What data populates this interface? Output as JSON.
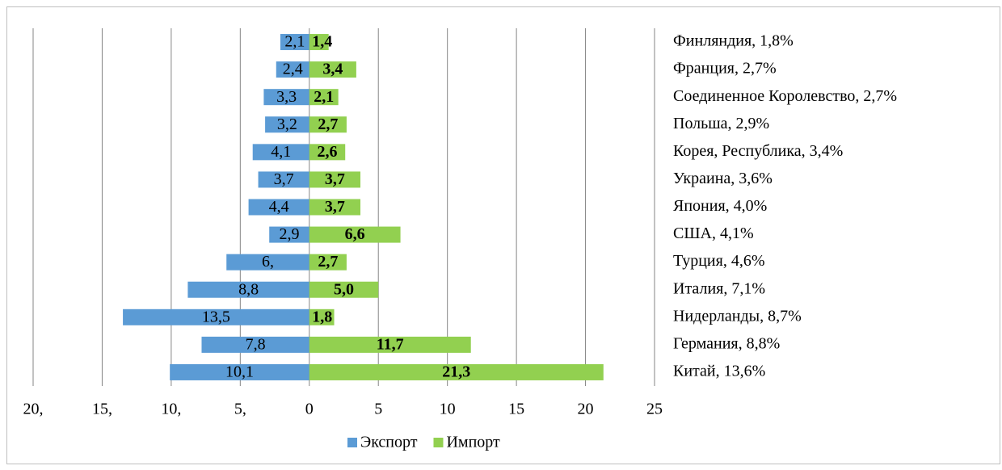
{
  "chart_data": {
    "type": "bar",
    "orientation": "horizontal",
    "categories": [
      "Финляндия, 1,8%",
      "Франция, 2,7%",
      "Соединенное Королевство, 2,7%",
      "Польша, 2,9%",
      "Корея, Республика, 3,4%",
      "Украина, 3,6%",
      "Япония, 4,0%",
      "США, 4,1%",
      "Турция, 4,6%",
      "Италия, 7,1%",
      "Нидерланды, 8,7%",
      "Германия, 8,8%",
      "Китай, 13,6%"
    ],
    "series": [
      {
        "name": "Экспорт",
        "color": "#5b9bd5",
        "values": [
          -2.1,
          -2.4,
          -3.3,
          -3.2,
          -4.1,
          -3.7,
          -4.4,
          -2.9,
          -6.0,
          -8.8,
          -13.5,
          -7.8,
          -10.1
        ],
        "value_labels": [
          "2,1",
          "2,4",
          "3,3",
          "3,2",
          "4,1",
          "3,7",
          "4,4",
          "2,9",
          "6,",
          "8,8",
          "13,5",
          "7,8",
          "10,1"
        ]
      },
      {
        "name": "Импорт",
        "color": "#92d050",
        "values": [
          1.4,
          3.4,
          2.1,
          2.7,
          2.6,
          3.7,
          3.7,
          6.6,
          2.7,
          5.0,
          1.8,
          11.7,
          21.3
        ],
        "value_labels": [
          "1,4",
          "3,4",
          "2,1",
          "2,7",
          "2,6",
          "3,7",
          "3,7",
          "6,6",
          "2,7",
          "5,0",
          "1,8",
          "11,7",
          "21,3"
        ]
      }
    ],
    "xlim": [
      -20,
      25
    ],
    "xticks": [
      {
        "value": -20,
        "label": "20,"
      },
      {
        "value": -15,
        "label": "15,"
      },
      {
        "value": -10,
        "label": "10,"
      },
      {
        "value": -5,
        "label": "5,"
      },
      0,
      5,
      10,
      15,
      20,
      25
    ],
    "grid": true,
    "legend": "bottom"
  }
}
